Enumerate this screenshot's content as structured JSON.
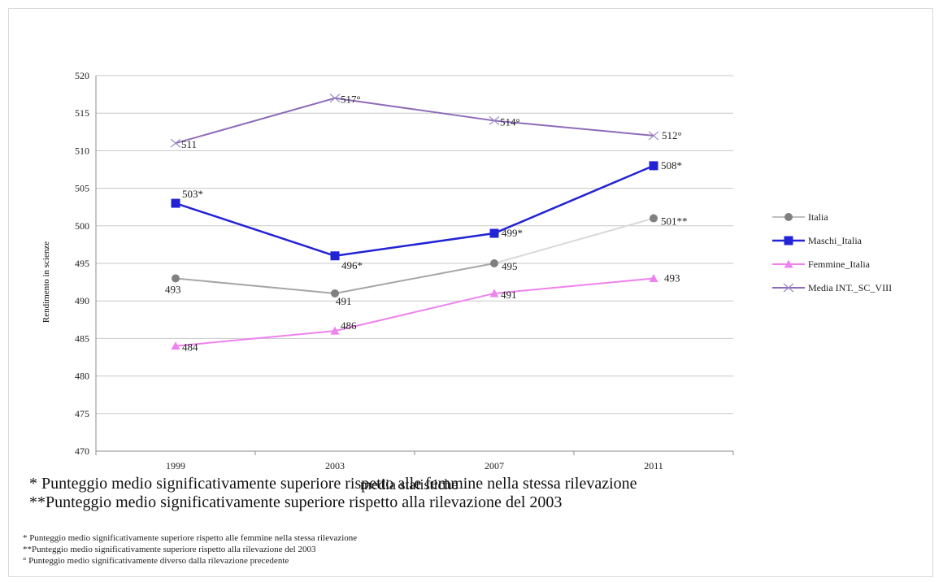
{
  "chart_data": {
    "type": "line",
    "title": "",
    "xlabel": "",
    "ylabel": "Rendimento in scienze",
    "categories": [
      "1999",
      "2003",
      "2007",
      "2011"
    ],
    "ylim": [
      470,
      520
    ],
    "yticks": [
      "470",
      "475",
      "480",
      "485",
      "490",
      "495",
      "500",
      "505",
      "510",
      "515",
      "520"
    ],
    "grid": true,
    "legend_position": "right",
    "series": [
      {
        "name": "Italia",
        "values": [
          493,
          491,
          495,
          501
        ],
        "labels": [
          "493",
          "491",
          "495",
          "501**"
        ],
        "color": "#8c8c8c",
        "segment_colors": [
          "#a6a6a6",
          "#a6a6a6",
          "#d9d9d9"
        ],
        "marker": "circle"
      },
      {
        "name": "Maschi_Italia",
        "values": [
          503,
          496,
          499,
          508
        ],
        "labels": [
          "503*",
          "496*",
          "499*",
          "508*"
        ],
        "color": "#2323d6",
        "marker": "square"
      },
      {
        "name": "Femmine_Italia",
        "values": [
          484,
          486,
          491,
          493
        ],
        "labels": [
          "484",
          "486",
          "491",
          "493"
        ],
        "color": "#ee82ee",
        "marker": "triangle"
      },
      {
        "name": "Media INT._SC_VIII",
        "values": [
          511,
          517,
          514,
          512
        ],
        "labels": [
          "511",
          "517°",
          "514°",
          "512°"
        ],
        "color": "#8e6bb8",
        "marker": "x"
      }
    ]
  },
  "notes": {
    "large_1": "* Punteggio medio significativamente superiore rispetto alle femmine nella stessa rilevazione",
    "large_1_overlap": "media statistiche",
    "large_2": "**Punteggio medio significativamente superiore rispetto alla rilevazione del 2003",
    "small_1": "* Punteggio medio significativamente superiore rispetto alle femmine nella stessa rilevazione",
    "small_2": "**Punteggio medio significativamente superiore rispetto alla rilevazione del 2003",
    "small_3": "° Punteggio medio significativamente diverso dalla rilevazione precedente"
  }
}
